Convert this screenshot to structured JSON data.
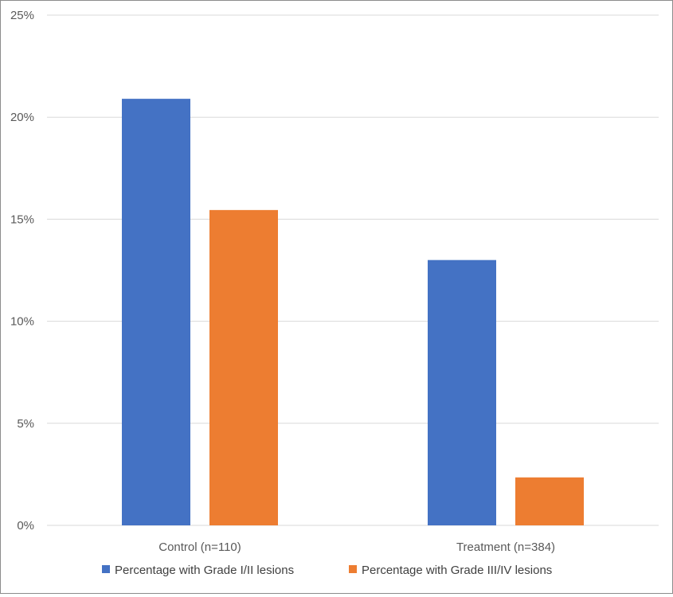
{
  "chart_data": {
    "type": "bar",
    "categories": [
      "Control (n=110)",
      "Treatment (n=384)"
    ],
    "series": [
      {
        "name": "Percentage with Grade I/II lesions",
        "values": [
          20.9,
          13.0
        ],
        "color": "#4472c4"
      },
      {
        "name": "Percentage with Grade III/IV lesions",
        "values": [
          15.45,
          2.35
        ],
        "color": "#ed7d31"
      }
    ],
    "yticks": [
      "0%",
      "5%",
      "10%",
      "15%",
      "20%",
      "25%"
    ],
    "ylim": [
      0,
      25
    ],
    "grid": true,
    "legend_position": "bottom"
  }
}
